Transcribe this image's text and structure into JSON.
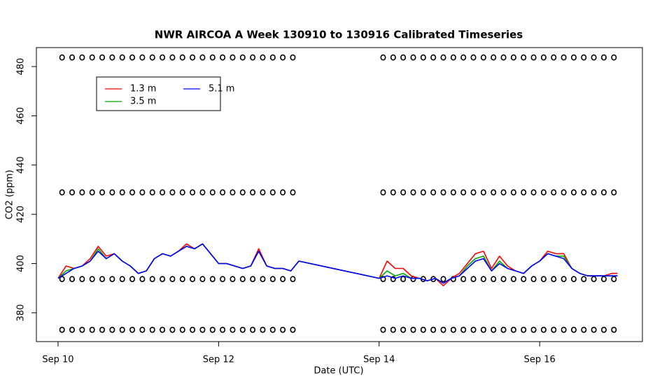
{
  "chart_data": {
    "type": "line",
    "title": "NWR AIRCOA A  Week 130910 to 130916  Calibrated Timeseries",
    "x_label": "Date (UTC)",
    "y_label": "CO2 (ppm)",
    "x": [
      10.0,
      10.1,
      10.2,
      10.3,
      10.4,
      10.5,
      10.6,
      10.7,
      10.8,
      10.9,
      11.0,
      11.1,
      11.2,
      11.3,
      11.4,
      11.5,
      11.6,
      11.7,
      11.8,
      11.9,
      12.0,
      12.1,
      12.2,
      12.3,
      12.4,
      12.5,
      12.6,
      12.7,
      12.8,
      12.9,
      13.0,
      14.0,
      14.1,
      14.2,
      14.3,
      14.4,
      14.5,
      14.6,
      14.7,
      14.8,
      14.9,
      15.0,
      15.1,
      15.2,
      15.3,
      15.4,
      15.5,
      15.6,
      15.7,
      15.8,
      15.9,
      16.0,
      16.1,
      16.2,
      16.3,
      16.4,
      16.5,
      16.6,
      16.7,
      16.8,
      16.9,
      16.97
    ],
    "series": [
      {
        "name": "1.3 m",
        "color": "#ff0000",
        "values": [
          394,
          399,
          398,
          399,
          402,
          407,
          403,
          404,
          401,
          399,
          396,
          397,
          402,
          404,
          403,
          405,
          408,
          406,
          408,
          404,
          400,
          400,
          399,
          398,
          399,
          406,
          399,
          398,
          398,
          397,
          401,
          394,
          401,
          398,
          398,
          395,
          394,
          393,
          394,
          391,
          394,
          396,
          400,
          404,
          405,
          398,
          403,
          399,
          397,
          396,
          399,
          401,
          405,
          404,
          404,
          398,
          396,
          395,
          395,
          395,
          396,
          396
        ]
      },
      {
        "name": "3.5 m",
        "color": "#00aa00",
        "values": [
          394,
          397,
          398,
          399,
          401,
          406,
          402,
          404,
          401,
          399,
          396,
          397,
          402,
          404,
          403,
          405,
          407,
          406,
          408,
          404,
          400,
          400,
          399,
          398,
          399,
          405,
          399,
          398,
          398,
          397,
          401,
          394,
          397,
          395,
          396,
          394,
          394,
          393,
          394,
          392,
          394,
          395,
          399,
          402,
          403,
          397,
          401,
          398,
          397,
          396,
          399,
          401,
          404,
          403,
          403,
          398,
          396,
          395,
          395,
          395,
          395,
          395
        ]
      },
      {
        "name": "5.1 m",
        "color": "#0000ff",
        "values": [
          394,
          396,
          398,
          399,
          401,
          405,
          402,
          404,
          401,
          399,
          396,
          397,
          402,
          404,
          403,
          405,
          407,
          406,
          408,
          404,
          400,
          400,
          399,
          398,
          399,
          405,
          399,
          398,
          398,
          397,
          401,
          394,
          395,
          394,
          395,
          394,
          394,
          393,
          394,
          392,
          394,
          395,
          398,
          401,
          402,
          397,
          400,
          398,
          397,
          396,
          399,
          401,
          404,
          403,
          402,
          398,
          396,
          395,
          395,
          395,
          395,
          395
        ]
      }
    ],
    "marker_x": [
      10.05,
      10.175,
      10.3,
      10.425,
      10.55,
      10.675,
      10.8,
      10.925,
      11.05,
      11.175,
      11.3,
      11.425,
      11.55,
      11.675,
      11.8,
      11.925,
      12.05,
      12.175,
      12.3,
      12.425,
      12.55,
      12.675,
      12.8,
      12.925,
      14.05,
      14.175,
      14.3,
      14.425,
      14.55,
      14.675,
      14.8,
      14.925,
      15.05,
      15.175,
      15.3,
      15.425,
      15.55,
      15.675,
      15.8,
      15.925,
      16.05,
      16.175,
      16.3,
      16.425,
      16.55,
      16.675,
      16.8,
      16.925
    ],
    "marker_levels": [
      373.1,
      393.7,
      428.9,
      483.7
    ],
    "xlim": [
      9.73,
      17.28
    ],
    "xticks": [
      {
        "value": 10,
        "label": "Sep 10"
      },
      {
        "value": 12,
        "label": "Sep 12"
      },
      {
        "value": 14,
        "label": "Sep 14"
      },
      {
        "value": 16,
        "label": "Sep 16"
      }
    ],
    "ylim": [
      368.3,
      487.7
    ],
    "yticks": [
      380,
      400,
      420,
      440,
      460,
      480
    ],
    "legend": "top-left"
  }
}
